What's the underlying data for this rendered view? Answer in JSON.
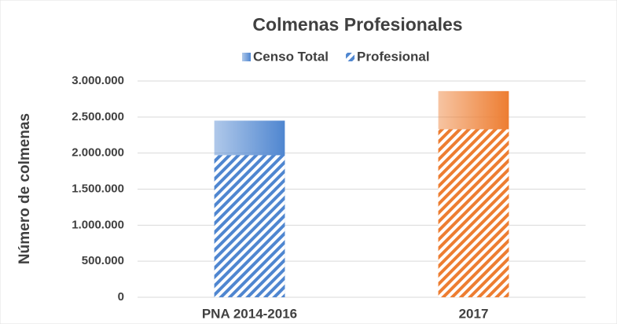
{
  "chart_data": {
    "type": "bar",
    "barmode": "overlay",
    "title": "Colmenas Profesionales",
    "ylabel": "Número de colmenas",
    "categories": [
      "PNA 2014-2016",
      "2017"
    ],
    "series": [
      {
        "name": "Censo Total",
        "colors": [
          "#4f86d0",
          "#ed7d31"
        ],
        "fill": "gradient",
        "values": [
          2450000,
          2860000
        ]
      },
      {
        "name": "Profesional",
        "colors": [
          "#4f86d0",
          "#ed7d31"
        ],
        "fill": "hatch",
        "values": [
          1970000,
          2330000
        ]
      }
    ],
    "ylim": [
      0,
      3000000
    ],
    "yticks": [
      0,
      {
        "value": 500000,
        "label": "500.000"
      },
      {
        "value": 1000000,
        "label": "1.000.000"
      },
      {
        "value": 1500000,
        "label": "1.500.000"
      },
      {
        "value": 2000000,
        "label": "2.000.000"
      },
      {
        "value": 2500000,
        "label": "2.500.000"
      },
      {
        "value": 3000000,
        "label": "3.000.000"
      }
    ],
    "grid": true,
    "legend": "top"
  }
}
